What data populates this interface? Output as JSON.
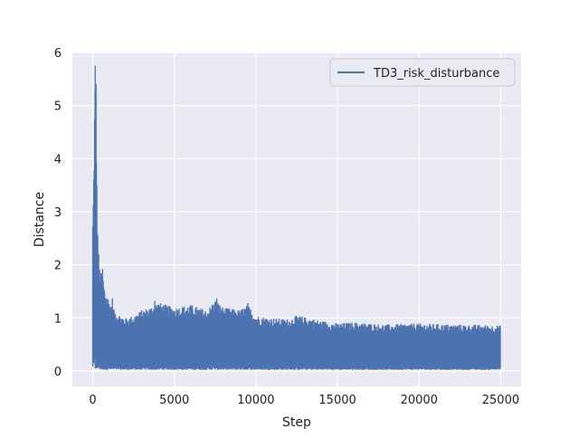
{
  "chart_data": {
    "type": "line",
    "title": "",
    "xlabel": "Step",
    "ylabel": "Distance",
    "xlim": [
      -1250,
      26250
    ],
    "ylim": [
      -0.29,
      6.0
    ],
    "xticks": [
      0,
      5000,
      10000,
      15000,
      20000,
      25000
    ],
    "xtick_labels": [
      "0",
      "5000",
      "10000",
      "15000",
      "20000",
      "25000"
    ],
    "yticks": [
      0,
      1,
      2,
      3,
      4,
      5,
      6
    ],
    "ytick_labels": [
      "0",
      "1",
      "2",
      "3",
      "4",
      "5",
      "6"
    ],
    "grid": true,
    "legend_position": "top-right",
    "background_color": "#eaeaf2",
    "grid_color": "#ffffff",
    "series": [
      {
        "name": "TD3_risk_disturbance",
        "color": "#4c72b0",
        "x_range": [
          0,
          25000
        ],
        "min_envelope": {
          "x": [
            0,
            500,
            25000
          ],
          "y": [
            0.05,
            0.02,
            0.02
          ]
        },
        "max_envelope": {
          "x": [
            0,
            50,
            100,
            150,
            200,
            250,
            300,
            350,
            400,
            500,
            600,
            700,
            800,
            1000,
            1200,
            1500,
            2000,
            2500,
            3000,
            3500,
            4000,
            5000,
            6000,
            7000,
            7500,
            8000,
            9000,
            9500,
            10000,
            11000,
            12000,
            12500,
            14000,
            15000,
            16000,
            18000,
            20000,
            22000,
            24000,
            25000
          ],
          "y": [
            2.9,
            3.7,
            4.8,
            5.75,
            5.4,
            3.5,
            2.7,
            2.3,
            2.0,
            1.85,
            1.9,
            1.6,
            1.5,
            1.35,
            1.2,
            1.1,
            1.0,
            1.05,
            1.15,
            1.2,
            1.3,
            1.2,
            1.25,
            1.15,
            1.35,
            1.2,
            1.15,
            1.25,
            1.05,
            1.0,
            0.98,
            1.05,
            0.95,
            0.9,
            0.92,
            0.88,
            0.9,
            0.88,
            0.87,
            0.86
          ]
        },
        "spikes": [
          {
            "x": 150,
            "y": 5.75
          },
          {
            "x": 200,
            "y": 5.4
          },
          {
            "x": 250,
            "y": 3.5
          },
          {
            "x": 600,
            "y": 1.92
          },
          {
            "x": 1200,
            "y": 1.37
          },
          {
            "x": 3800,
            "y": 1.32
          },
          {
            "x": 7600,
            "y": 1.37
          },
          {
            "x": 9500,
            "y": 1.28
          }
        ]
      }
    ]
  }
}
